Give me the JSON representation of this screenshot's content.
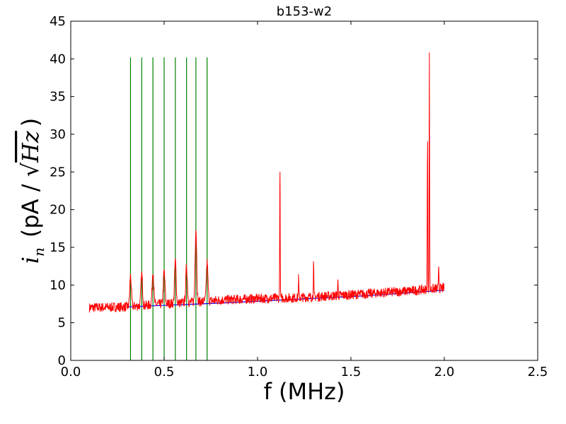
{
  "chart_data": {
    "type": "line",
    "title": "b153-w2",
    "xlabel": "f (MHz)",
    "ylabel": "i_n (pA / √Hz)",
    "ylabel_parts": {
      "symbol": "i",
      "subscript": "n",
      "open": "(pA / ",
      "radicand": "Hz",
      "close": ")"
    },
    "xlim": [
      0.0,
      2.5
    ],
    "ylim": [
      0,
      45
    ],
    "xticks": [
      "0.0",
      "0.5",
      "1.0",
      "1.5",
      "2.0",
      "2.5"
    ],
    "yticks": [
      "0",
      "5",
      "10",
      "15",
      "20",
      "25",
      "30",
      "35",
      "40",
      "45"
    ],
    "grid": false,
    "colors": {
      "measured": "#ff0000",
      "fit": "#0000ff",
      "markers": "#008000",
      "axes": "#000000",
      "background": "#ffffff"
    },
    "series": [
      {
        "kind": "noise_spectrum",
        "x_range": [
          0.1,
          2.0
        ],
        "baseline": [
          [
            0.1,
            7.0
          ],
          [
            0.3,
            7.1
          ],
          [
            0.5,
            7.5
          ],
          [
            0.7,
            7.8
          ],
          [
            0.8,
            8.0
          ],
          [
            1.0,
            8.2
          ],
          [
            1.2,
            8.3
          ],
          [
            1.5,
            8.7
          ],
          [
            1.8,
            9.2
          ],
          [
            2.0,
            9.6
          ]
        ],
        "peaks": [
          {
            "x": 0.32,
            "y": 11.2
          },
          {
            "x": 0.38,
            "y": 11.5
          },
          {
            "x": 0.44,
            "y": 12.0
          },
          {
            "x": 0.5,
            "y": 11.8
          },
          {
            "x": 0.56,
            "y": 13.2
          },
          {
            "x": 0.62,
            "y": 12.5
          },
          {
            "x": 0.67,
            "y": 17.5
          },
          {
            "x": 0.73,
            "y": 13.0
          },
          {
            "x": 1.12,
            "y": 26.2
          },
          {
            "x": 1.22,
            "y": 11.0
          },
          {
            "x": 1.3,
            "y": 13.0
          },
          {
            "x": 1.43,
            "y": 10.8
          },
          {
            "x": 1.91,
            "y": 30.2
          },
          {
            "x": 1.92,
            "y": 40.5
          },
          {
            "x": 1.97,
            "y": 12.7
          }
        ]
      },
      {
        "kind": "fit",
        "points": [
          [
            0.3,
            7.1
          ],
          [
            0.8,
            7.6
          ],
          [
            1.2,
            8.1
          ],
          [
            1.6,
            8.6
          ],
          [
            2.0,
            9.3
          ]
        ]
      }
    ],
    "vertical_markers": {
      "x": [
        0.32,
        0.38,
        0.44,
        0.5,
        0.56,
        0.62,
        0.67,
        0.73
      ],
      "y_range": [
        0,
        40.2
      ]
    }
  }
}
